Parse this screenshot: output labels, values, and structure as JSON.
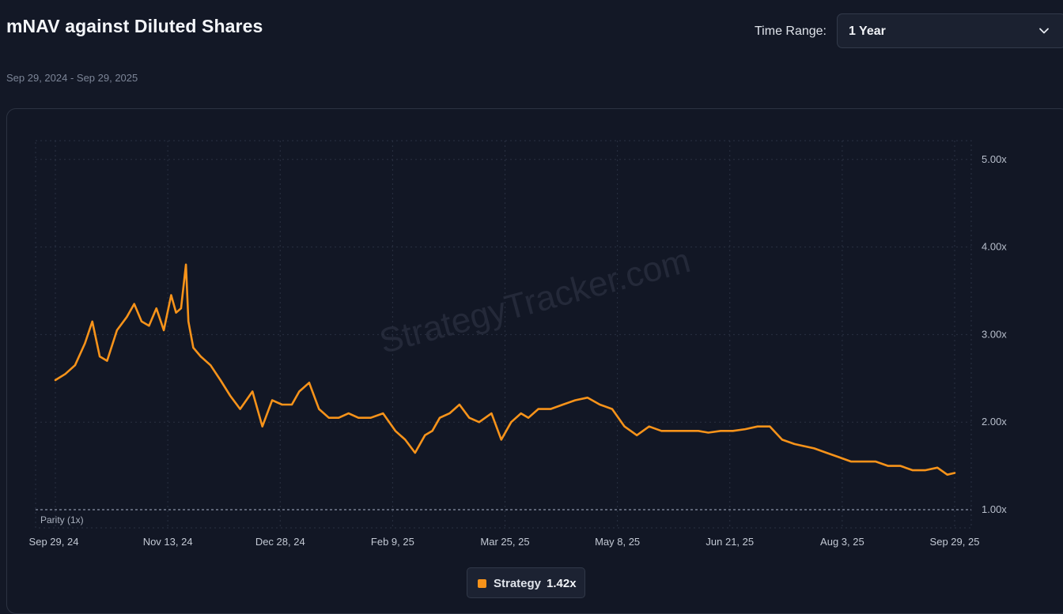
{
  "header": {
    "title": "mNAV against Diluted Shares",
    "date_range": "Sep 29, 2024 - Sep 29, 2025",
    "time_range_label": "Time Range:",
    "time_range_value": "1 Year",
    "time_range_icon": "chevron-down-icon"
  },
  "watermark": "StrategyTracker.com",
  "legend": {
    "name": "Strategy",
    "value": "1.42x"
  },
  "colors": {
    "background": "#131826",
    "series": "#f7931a",
    "grid": "#2a3142",
    "text_muted": "#8a93a5"
  },
  "chart_data": {
    "type": "line",
    "title": "mNAV against Diluted Shares",
    "xlabel": "",
    "ylabel": "",
    "x_ticks": [
      "Sep 29, 24",
      "Nov 13, 24",
      "Dec 28, 24",
      "Feb 9, 25",
      "Mar 25, 25",
      "May 8, 25",
      "Jun 21, 25",
      "Aug 3, 25",
      "Sep 29, 25"
    ],
    "y_ticks": [
      "5.00x",
      "4.00x",
      "3.00x",
      "2.00x",
      "1.00x"
    ],
    "ylim": [
      0.8,
      5.2
    ],
    "reference_line": {
      "value": 1.0,
      "label": "Parity (1x)"
    },
    "grid": true,
    "legend_position": "bottom-center",
    "series": [
      {
        "name": "Strategy",
        "x": [
          "2024-09-29",
          "2024-10-03",
          "2024-10-07",
          "2024-10-11",
          "2024-10-14",
          "2024-10-17",
          "2024-10-20",
          "2024-10-24",
          "2024-10-28",
          "2024-10-31",
          "2024-11-03",
          "2024-11-06",
          "2024-11-09",
          "2024-11-12",
          "2024-11-15",
          "2024-11-17",
          "2024-11-19",
          "2024-11-21",
          "2024-11-22",
          "2024-11-24",
          "2024-11-27",
          "2024-12-01",
          "2024-12-05",
          "2024-12-09",
          "2024-12-13",
          "2024-12-18",
          "2024-12-22",
          "2024-12-26",
          "2024-12-30",
          "2025-01-03",
          "2025-01-06",
          "2025-01-10",
          "2025-01-14",
          "2025-01-18",
          "2025-01-22",
          "2025-01-26",
          "2025-01-30",
          "2025-02-04",
          "2025-02-09",
          "2025-02-14",
          "2025-02-18",
          "2025-02-22",
          "2025-02-26",
          "2025-03-01",
          "2025-03-04",
          "2025-03-08",
          "2025-03-12",
          "2025-03-16",
          "2025-03-20",
          "2025-03-25",
          "2025-03-29",
          "2025-04-02",
          "2025-04-06",
          "2025-04-09",
          "2025-04-13",
          "2025-04-18",
          "2025-04-23",
          "2025-04-28",
          "2025-05-03",
          "2025-05-08",
          "2025-05-13",
          "2025-05-18",
          "2025-05-23",
          "2025-05-28",
          "2025-06-02",
          "2025-06-07",
          "2025-06-12",
          "2025-06-17",
          "2025-06-21",
          "2025-06-26",
          "2025-07-01",
          "2025-07-06",
          "2025-07-11",
          "2025-07-16",
          "2025-07-21",
          "2025-07-26",
          "2025-08-03",
          "2025-08-08",
          "2025-08-13",
          "2025-08-18",
          "2025-08-23",
          "2025-08-28",
          "2025-09-02",
          "2025-09-07",
          "2025-09-12",
          "2025-09-17",
          "2025-09-22",
          "2025-09-26",
          "2025-09-29"
        ],
        "values": [
          2.48,
          2.55,
          2.65,
          2.9,
          3.15,
          2.75,
          2.7,
          3.05,
          3.2,
          3.35,
          3.15,
          3.1,
          3.3,
          3.05,
          3.45,
          3.25,
          3.3,
          3.8,
          3.15,
          2.85,
          2.75,
          2.65,
          2.48,
          2.3,
          2.15,
          2.35,
          1.95,
          2.25,
          2.2,
          2.2,
          2.35,
          2.45,
          2.15,
          2.05,
          2.05,
          2.1,
          2.05,
          2.05,
          2.1,
          1.9,
          1.8,
          1.65,
          1.85,
          1.9,
          2.05,
          2.1,
          2.2,
          2.05,
          2.0,
          2.1,
          1.8,
          2.0,
          2.1,
          2.05,
          2.15,
          2.15,
          2.2,
          2.25,
          2.28,
          2.2,
          2.15,
          1.95,
          1.85,
          1.95,
          1.9,
          1.9,
          1.9,
          1.9,
          1.88,
          1.9,
          1.9,
          1.92,
          1.95,
          1.95,
          1.8,
          1.75,
          1.7,
          1.65,
          1.6,
          1.55,
          1.55,
          1.55,
          1.5,
          1.5,
          1.45,
          1.45,
          1.48,
          1.4,
          1.42
        ]
      }
    ]
  }
}
